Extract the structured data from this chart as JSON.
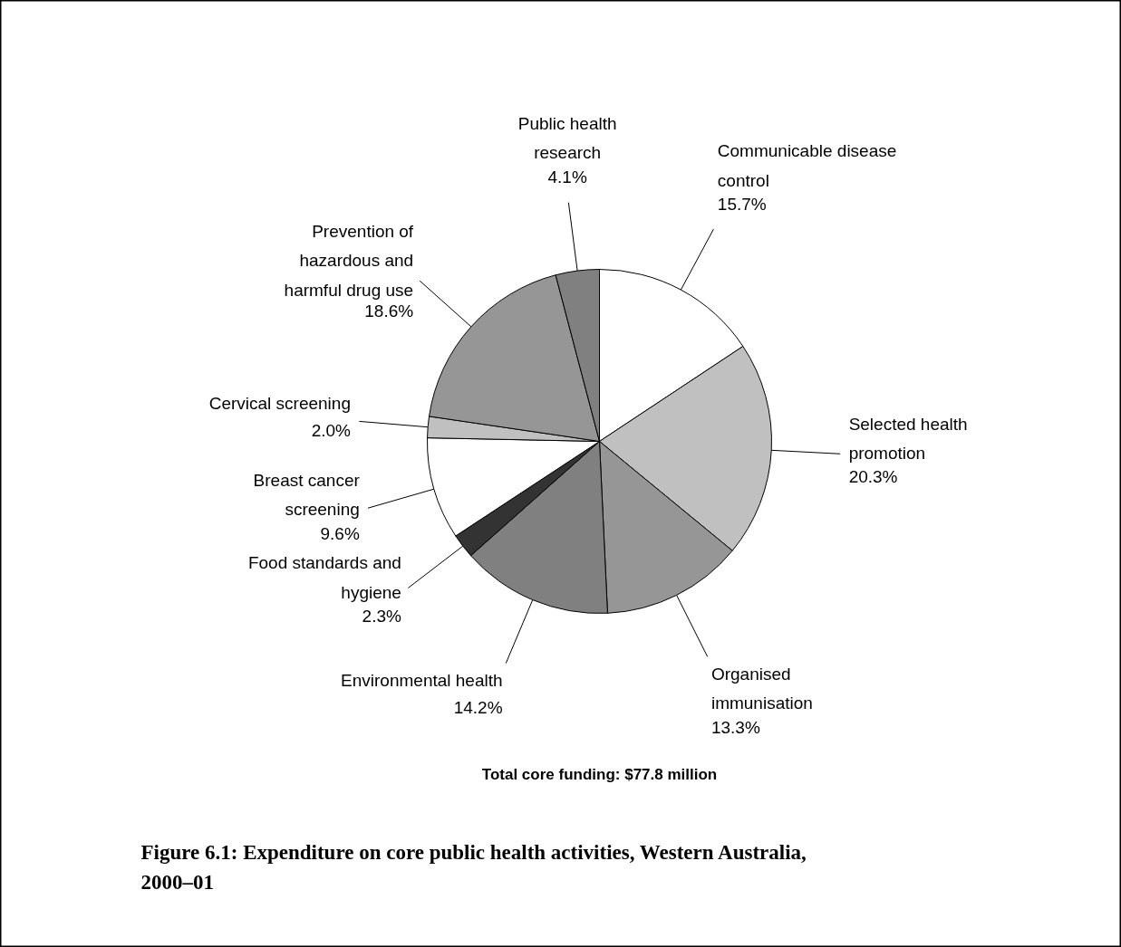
{
  "chart_data": {
    "type": "pie",
    "title": "Figure 6.1: Expenditure on core public health activities, Western Australia, 2000–01",
    "categories": [
      "Communicable disease control",
      "Selected health promotion",
      "Organised immunisation",
      "Environmental health",
      "Food standards and hygiene",
      "Breast cancer screening",
      "Cervical screening",
      "Prevention of hazardous and harmful drug use",
      "Public health research"
    ],
    "values": [
      15.7,
      20.3,
      13.3,
      14.2,
      2.3,
      9.6,
      2.0,
      18.6,
      4.1
    ],
    "value_labels": [
      "15.7%",
      "20.3%",
      "13.3%",
      "14.2%",
      "2.3%",
      "9.6%",
      "2.0%",
      "18.6%",
      "4.1%"
    ],
    "colors": [
      "#ffffff",
      "#c0c0c0",
      "#969696",
      "#808080",
      "#333333",
      "#ffffff",
      "#c0c0c0",
      "#969696",
      "#808080"
    ],
    "annotations": [
      "Total core funding: $77.8 million"
    ]
  }
}
